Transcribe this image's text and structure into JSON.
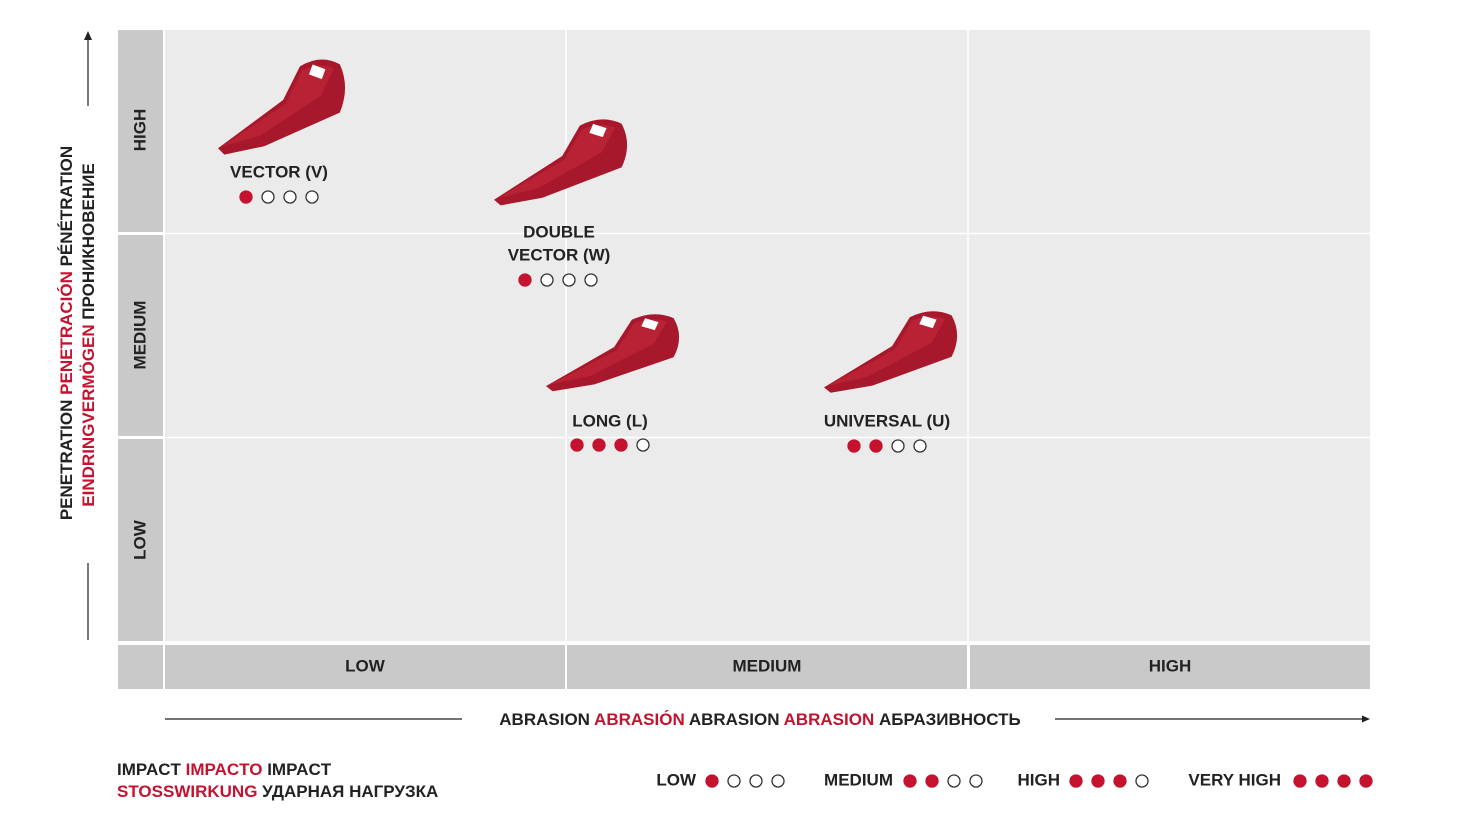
{
  "y_axis": {
    "title_lines": [
      [
        "PENETRATION",
        "PENETRACIÓN",
        "PÉNÉTRATION"
      ],
      [
        "EINDRINGVERMÖGEN",
        "ПРОНИКНОВЕНИЕ"
      ]
    ],
    "levels": [
      "HIGH",
      "MEDIUM",
      "LOW"
    ]
  },
  "x_axis": {
    "title": [
      "ABRASION",
      "ABRASIÓN",
      "ABRASION",
      "ABRASION",
      "АБРАЗИВНОСТЬ"
    ],
    "levels": [
      "LOW",
      "MEDIUM",
      "HIGH"
    ]
  },
  "products": [
    {
      "name_lines": [
        "VECTOR (V)"
      ],
      "impact": 1
    },
    {
      "name_lines": [
        "DOUBLE",
        "VECTOR (W)"
      ],
      "impact": 1
    },
    {
      "name_lines": [
        "LONG (L)"
      ],
      "impact": 3
    },
    {
      "name_lines": [
        "UNIVERSAL (U)"
      ],
      "impact": 2
    }
  ],
  "legend": {
    "title_lines": [
      [
        "IMPACT",
        "IMPACTO",
        "IMPACT"
      ],
      [
        "STOSSWIRKUNG",
        "УДАРНАЯ НАГРУЗКА"
      ]
    ],
    "items": [
      {
        "label": "LOW",
        "level": 1
      },
      {
        "label": "MEDIUM",
        "level": 2
      },
      {
        "label": "HIGH",
        "level": 3
      },
      {
        "label": "VERY HIGH",
        "level": 4
      }
    ]
  }
}
